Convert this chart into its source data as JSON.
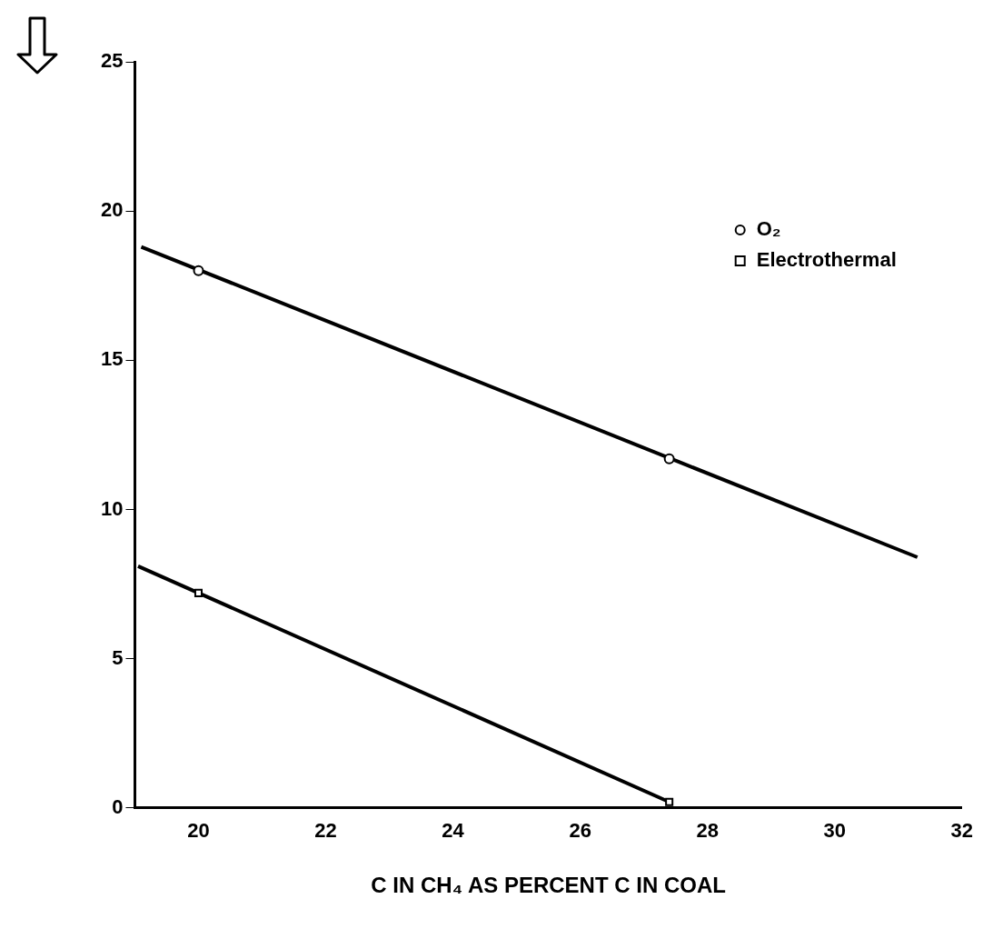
{
  "chart_data": {
    "type": "scatter",
    "xlabel": "C IN CH₄ AS PERCENT C IN COAL",
    "xlim": [
      19,
      32
    ],
    "xticks": [
      20,
      22,
      24,
      26,
      28,
      30,
      32
    ],
    "ylim": [
      0,
      25
    ],
    "yticks": [
      0,
      5,
      10,
      15,
      20,
      25
    ],
    "grid": false,
    "legend": "top right",
    "series": [
      {
        "name": "O₂",
        "type": "scatter",
        "marker": "circle",
        "color": "#000000",
        "x": [
          20,
          27.4
        ],
        "values": [
          18.0,
          11.7
        ]
      },
      {
        "name": "Electrothermal",
        "type": "scatter",
        "marker": "square",
        "color": "#000000",
        "x": [
          20,
          27.4
        ],
        "values": [
          7.2,
          0.2
        ]
      },
      {
        "type": "line",
        "marker": "none",
        "color": "#000000",
        "x": [
          19.1,
          31.3
        ],
        "values": [
          18.8,
          8.4
        ]
      },
      {
        "type": "line",
        "marker": "none",
        "color": "#000000",
        "x": [
          19.05,
          27.4
        ],
        "values": [
          8.1,
          0.2
        ]
      }
    ]
  }
}
